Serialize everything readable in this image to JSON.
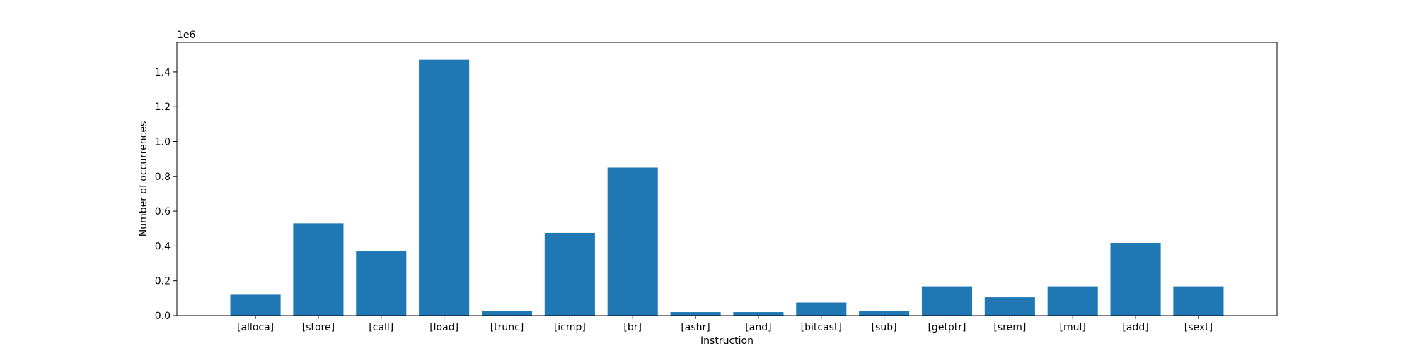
{
  "chart_data": {
    "type": "bar",
    "title": "",
    "xlabel": "Instruction",
    "ylabel": "Number of occurrences",
    "y_scale_label": "1e6",
    "y_scale_factor": 1000000,
    "ylim": [
      0,
      1.57
    ],
    "yticks": [
      0.0,
      0.2,
      0.4,
      0.6,
      0.8,
      1.0,
      1.2,
      1.4
    ],
    "grid": false,
    "legend": "none",
    "bar_color": "#1f77b4",
    "categories": [
      "[alloca]",
      "[store]",
      "[call]",
      "[load]",
      "[trunc]",
      "[icmp]",
      "[br]",
      "[ashr]",
      "[and]",
      "[bitcast]",
      "[sub]",
      "[getptr]",
      "[srem]",
      "[mul]",
      "[add]",
      "[sext]"
    ],
    "values": [
      120000,
      530000,
      370000,
      1470000,
      25000,
      475000,
      850000,
      20000,
      20000,
      75000,
      25000,
      168000,
      105000,
      168000,
      418000,
      168000
    ]
  }
}
